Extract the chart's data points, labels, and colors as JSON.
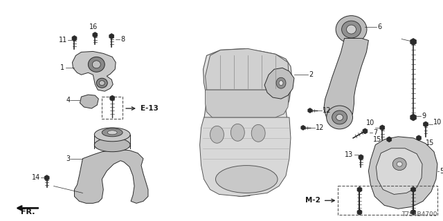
{
  "bg_color": "#ffffff",
  "diagram_code": "T7S4B4700",
  "fr_label": "FR.",
  "e13_label": "E-13",
  "m2_label": "M-2",
  "text_color": "#1a1a1a",
  "label_fontsize": 7.0,
  "code_fontsize": 6.5,
  "line_color": "#2a2a2a",
  "part_color_light": "#d4d4d4",
  "part_color_mid": "#b8b8b8",
  "part_color_dark": "#909090"
}
